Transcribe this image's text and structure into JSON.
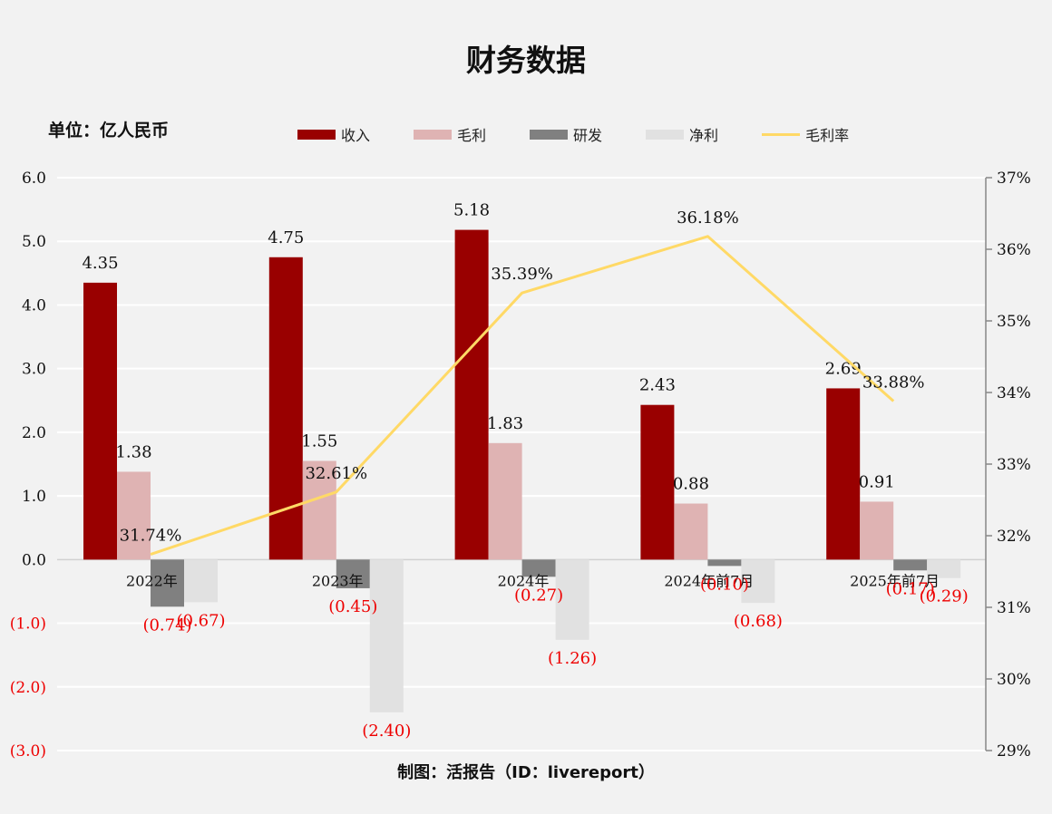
{
  "title": "财务数据",
  "unit_label": "单位：亿人民币",
  "footer": "制图：活报告（ID：livereport）",
  "colors": {
    "revenue": "#990000",
    "gross_profit": "#dfb3b3",
    "rnd": "#808080",
    "net_profit": "#e1e1e1",
    "gross_margin": "#ffd966",
    "negative_text": "#ee0000"
  },
  "chart_data": {
    "type": "bar",
    "title": "财务数据",
    "categories": [
      "2022年",
      "2023年",
      "2024年",
      "2024年前7月",
      "2025年前7月"
    ],
    "series": [
      {
        "name": "收入",
        "kind": "bar",
        "values": [
          4.35,
          4.75,
          5.18,
          2.43,
          2.69
        ],
        "labels": [
          "4.35",
          "4.75",
          "5.18",
          "2.43",
          "2.69"
        ]
      },
      {
        "name": "毛利",
        "kind": "bar",
        "values": [
          1.38,
          1.55,
          1.83,
          0.88,
          0.91
        ],
        "labels": [
          "1.38",
          "1.55",
          "1.83",
          "0.88",
          "0.91"
        ]
      },
      {
        "name": "研发",
        "kind": "bar",
        "values": [
          -0.74,
          -0.45,
          -0.27,
          -0.1,
          -0.17
        ],
        "labels": [
          "(0.74)",
          "(0.45)",
          "(0.27)",
          "(0.10)",
          "(0.17)"
        ]
      },
      {
        "name": "净利",
        "kind": "bar",
        "values": [
          -0.67,
          -2.4,
          -1.26,
          -0.68,
          -0.29
        ],
        "labels": [
          "(0.67)",
          "(2.40)",
          "(1.26)",
          "(0.68)",
          "(0.29)"
        ]
      },
      {
        "name": "毛利率",
        "kind": "line",
        "axis": "right",
        "values": [
          31.74,
          32.61,
          35.39,
          36.18,
          33.88
        ],
        "labels": [
          "31.74%",
          "32.61%",
          "35.39%",
          "36.18%",
          "33.88%"
        ]
      }
    ],
    "y_left": {
      "ylim": [
        -3.0,
        6.0
      ],
      "ticks": [
        6,
        5,
        4,
        3,
        2,
        1,
        0,
        -1,
        -2,
        -3
      ],
      "tick_labels": [
        "6.0",
        "5.0",
        "4.0",
        "3.0",
        "2.0",
        "1.0",
        "0.0",
        "(1.0)",
        "(2.0)",
        "(3.0)"
      ]
    },
    "y_right": {
      "ylim": [
        29,
        37
      ],
      "ticks": [
        37,
        36,
        35,
        34,
        33,
        32,
        31,
        30,
        29
      ],
      "tick_labels": [
        "37%",
        "36%",
        "35%",
        "34%",
        "33%",
        "32%",
        "31%",
        "30%",
        "29%"
      ]
    },
    "grid": true,
    "legend_position": "top"
  }
}
